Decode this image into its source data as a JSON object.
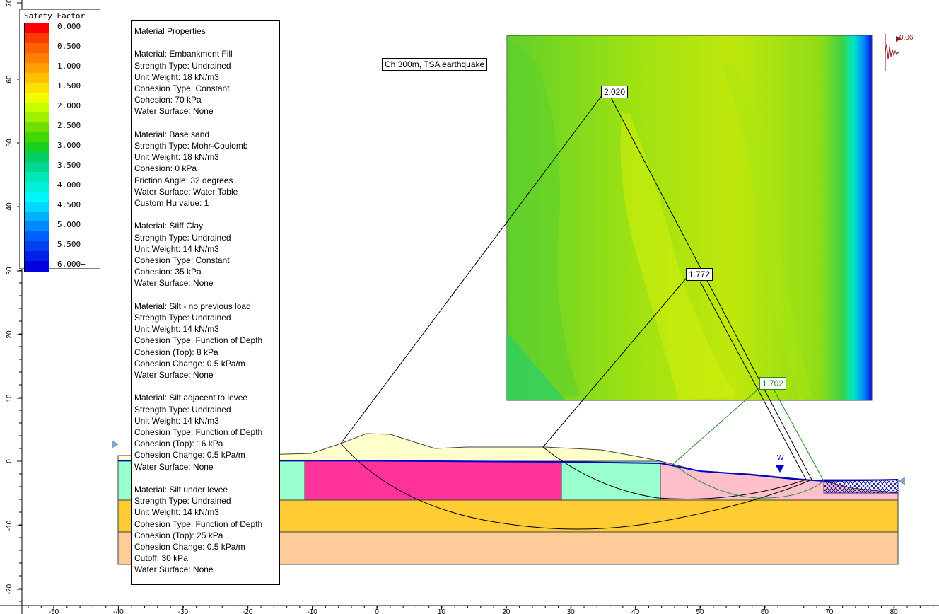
{
  "legend": {
    "title": "Safety Factor",
    "items": [
      {
        "label": "0.000",
        "color": "#ff0000"
      },
      {
        "label": "",
        "color": "#ff3a00"
      },
      {
        "label": "0.500",
        "color": "#ff6000"
      },
      {
        "label": "",
        "color": "#ff8000"
      },
      {
        "label": "1.000",
        "color": "#ffa000"
      },
      {
        "label": "",
        "color": "#ffc000"
      },
      {
        "label": "1.500",
        "color": "#ffe000"
      },
      {
        "label": "",
        "color": "#f0ff00"
      },
      {
        "label": "2.000",
        "color": "#c8ff00"
      },
      {
        "label": "",
        "color": "#a0f000"
      },
      {
        "label": "2.500",
        "color": "#70e000"
      },
      {
        "label": "",
        "color": "#40d800"
      },
      {
        "label": "3.000",
        "color": "#18d020"
      },
      {
        "label": "",
        "color": "#00d060"
      },
      {
        "label": "3.500",
        "color": "#00d890"
      },
      {
        "label": "",
        "color": "#00e8b8"
      },
      {
        "label": "4.000",
        "color": "#00f0d8"
      },
      {
        "label": "",
        "color": "#00f8f8"
      },
      {
        "label": "4.500",
        "color": "#00d8ff"
      },
      {
        "label": "",
        "color": "#00b0ff"
      },
      {
        "label": "5.000",
        "color": "#0088ff"
      },
      {
        "label": "",
        "color": "#0060ff"
      },
      {
        "label": "5.500",
        "color": "#0040f0"
      },
      {
        "label": "",
        "color": "#0020e8"
      },
      {
        "label": "6.000+",
        "color": "#0000e0"
      }
    ]
  },
  "materials": {
    "header": "Material Properties",
    "blocks": [
      {
        "lines": [
          "Material: Embankment Fill",
          "Strength Type: Undrained",
          "Unit Weight: 18 kN/m3",
          "Cohesion Type: Constant",
          "Cohesion: 70 kPa",
          "Water Surface: None"
        ]
      },
      {
        "lines": [
          "Material: Base sand",
          "Strength Type: Mohr-Coulomb",
          "Unit Weight: 18 kN/m3",
          "Cohesion: 0 kPa",
          "Friction Angle: 32 degrees",
          "Water Surface: Water Table",
          "Custom Hu value: 1"
        ]
      },
      {
        "lines": [
          "Material: Stiff Clay",
          "Strength Type: Undrained",
          "Unit Weight: 14 kN/m3",
          "Cohesion Type: Constant",
          "Cohesion: 35 kPa",
          "Water Surface: None"
        ]
      },
      {
        "lines": [
          "Material: Silt - no previous load",
          "Strength Type: Undrained",
          "Unit Weight: 14 kN/m3",
          "Cohesion Type: Function of Depth",
          "Cohesion (Top): 8 kPa",
          "Cohesion Change: 0.5 kPa/m",
          "Water Surface: None"
        ]
      },
      {
        "lines": [
          "Material: Silt adjacent to levee",
          "Strength Type: Undrained",
          "Unit Weight: 14 kN/m3",
          "Cohesion Type: Function of Depth",
          "Cohesion (Top): 16 kPa",
          "Cohesion Change: 0.5 kPa/m",
          "Water Surface: None"
        ]
      },
      {
        "lines": [
          "Material: Silt under levee",
          "Strength Type: Undrained",
          "Unit Weight: 14 kN/m3",
          "Cohesion Type: Function of Depth",
          "Cohesion (Top): 25 kPa",
          "Cohesion Change: 0.5 kPa/m",
          "Cutoff: 30 kPa",
          "Water Surface: None"
        ]
      }
    ]
  },
  "case_label": "Ch 300m, TSA earthquake",
  "safety_factors": {
    "fs_global": "2.020",
    "fs_middle": "1.772",
    "fs_local": "1.702"
  },
  "seismic": {
    "value": "0.06",
    "color": "#8b1a1a"
  },
  "water_marker": "W",
  "axes": {
    "y_ticks": [
      "70",
      "60",
      "50",
      "40",
      "30",
      "20",
      "10",
      "0",
      "-10",
      "-20"
    ],
    "x_ticks": [
      "-50",
      "-40",
      "-30",
      "-20",
      "-10",
      "0",
      "10",
      "20",
      "30",
      "40",
      "50",
      "60",
      "70",
      "80"
    ]
  },
  "colors": {
    "embankment_fill": "#ffffcc",
    "silt_under_levee": "#ff3399",
    "silt_adjacent": "#99ffcc",
    "silt_no_load": "#ffc0cb",
    "stiff_clay": "#ffcc33",
    "base_sand": "#ffcc99",
    "water_table": "#0000cc",
    "global_slip": "#000000",
    "local_slip": "#228b22"
  }
}
